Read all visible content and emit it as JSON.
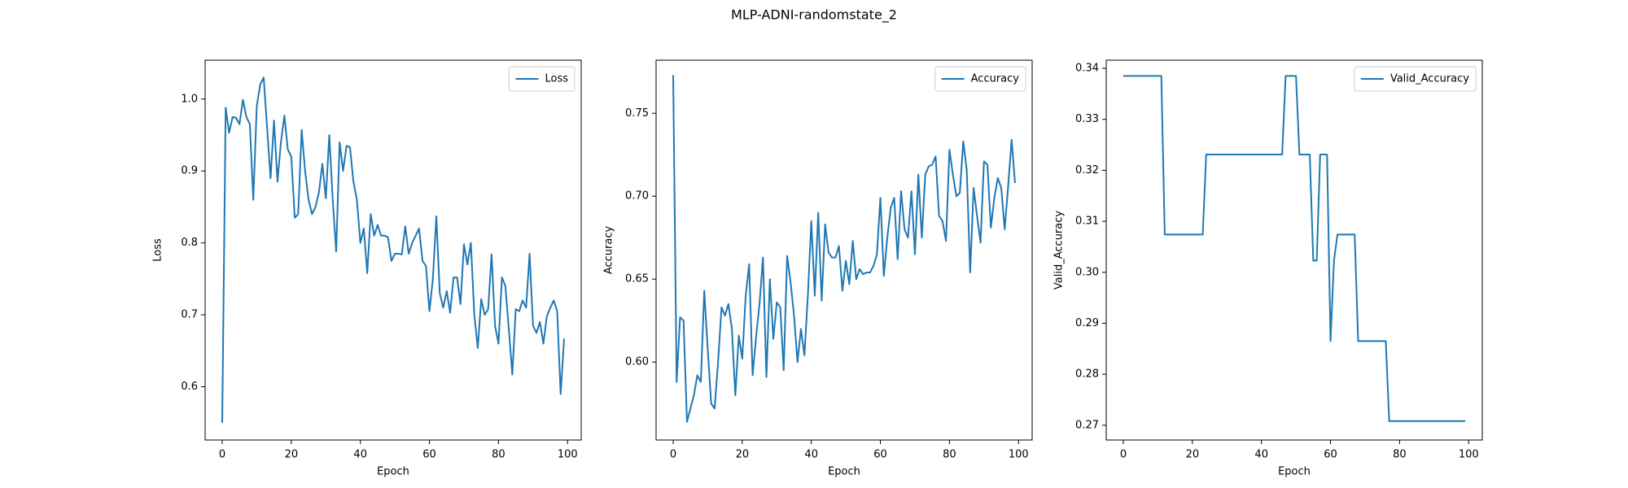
{
  "title": "MLP-ADNI-randomstate_2",
  "chart_data": [
    {
      "type": "line",
      "xlabel": "Epoch",
      "ylabel": "Loss",
      "legend": "upper right",
      "xlim": [
        -4.95,
        103.95
      ],
      "ylim": [
        0.526,
        1.054
      ],
      "xticks": [
        0,
        20,
        40,
        60,
        80,
        100
      ],
      "yticks": [
        0.6,
        0.7,
        0.8,
        0.9,
        {
          "value": 1,
          "label": "1.0"
        }
      ],
      "x": [
        0,
        1,
        2,
        3,
        4,
        5,
        6,
        7,
        8,
        9,
        10,
        11,
        12,
        13,
        14,
        15,
        16,
        17,
        18,
        19,
        20,
        21,
        22,
        23,
        24,
        25,
        26,
        27,
        28,
        29,
        30,
        31,
        32,
        33,
        34,
        35,
        36,
        37,
        38,
        39,
        40,
        41,
        42,
        43,
        44,
        45,
        46,
        47,
        48,
        49,
        50,
        51,
        52,
        53,
        54,
        55,
        56,
        57,
        58,
        59,
        60,
        61,
        62,
        63,
        64,
        65,
        66,
        67,
        68,
        69,
        70,
        71,
        72,
        73,
        74,
        75,
        76,
        77,
        78,
        79,
        80,
        81,
        82,
        83,
        84,
        85,
        86,
        87,
        88,
        89,
        90,
        91,
        92,
        93,
        94,
        95,
        96,
        97,
        98,
        99
      ],
      "series": [
        {
          "name": "Loss",
          "color": "#1f77b4",
          "values": [
            0.55,
            0.988,
            0.953,
            0.975,
            0.974,
            0.965,
            0.999,
            0.975,
            0.965,
            0.86,
            0.99,
            1.02,
            1.03,
            0.96,
            0.89,
            0.97,
            0.885,
            0.94,
            0.977,
            0.93,
            0.92,
            0.835,
            0.84,
            0.957,
            0.9,
            0.86,
            0.84,
            0.85,
            0.87,
            0.91,
            0.862,
            0.95,
            0.86,
            0.788,
            0.94,
            0.9,
            0.935,
            0.933,
            0.885,
            0.86,
            0.8,
            0.82,
            0.758,
            0.84,
            0.81,
            0.825,
            0.81,
            0.81,
            0.808,
            0.775,
            0.785,
            0.785,
            0.784,
            0.823,
            0.785,
            0.8,
            0.81,
            0.82,
            0.775,
            0.768,
            0.705,
            0.75,
            0.837,
            0.73,
            0.71,
            0.733,
            0.703,
            0.752,
            0.752,
            0.715,
            0.798,
            0.77,
            0.8,
            0.7,
            0.654,
            0.722,
            0.7,
            0.708,
            0.784,
            0.685,
            0.66,
            0.752,
            0.74,
            0.68,
            0.617,
            0.708,
            0.705,
            0.72,
            0.71,
            0.785,
            0.685,
            0.675,
            0.69,
            0.66,
            0.698,
            0.71,
            0.72,
            0.705,
            0.59,
            0.667
          ]
        }
      ]
    },
    {
      "type": "line",
      "xlabel": "Epoch",
      "ylabel": "Accuracy",
      "legend": "upper right",
      "xlim": [
        -4.95,
        103.95
      ],
      "ylim": [
        0.553,
        0.782
      ],
      "xticks": [
        0,
        20,
        40,
        60,
        80,
        100
      ],
      "yticks": [
        {
          "value": 0.6,
          "label": "0.60"
        },
        0.65,
        {
          "value": 0.7,
          "label": "0.70"
        },
        0.75
      ],
      "x": [
        0,
        1,
        2,
        3,
        4,
        5,
        6,
        7,
        8,
        9,
        10,
        11,
        12,
        13,
        14,
        15,
        16,
        17,
        18,
        19,
        20,
        21,
        22,
        23,
        24,
        25,
        26,
        27,
        28,
        29,
        30,
        31,
        32,
        33,
        34,
        35,
        36,
        37,
        38,
        39,
        40,
        41,
        42,
        43,
        44,
        45,
        46,
        47,
        48,
        49,
        50,
        51,
        52,
        53,
        54,
        55,
        56,
        57,
        58,
        59,
        60,
        61,
        62,
        63,
        64,
        65,
        66,
        67,
        68,
        69,
        70,
        71,
        72,
        73,
        74,
        75,
        76,
        77,
        78,
        79,
        80,
        81,
        82,
        83,
        84,
        85,
        86,
        87,
        88,
        89,
        90,
        91,
        92,
        93,
        94,
        95,
        96,
        97,
        98,
        99
      ],
      "series": [
        {
          "name": "Accuracy",
          "color": "#1f77b4",
          "values": [
            0.773,
            0.588,
            0.627,
            0.625,
            0.564,
            0.572,
            0.58,
            0.592,
            0.588,
            0.643,
            0.608,
            0.575,
            0.572,
            0.6,
            0.633,
            0.628,
            0.635,
            0.62,
            0.58,
            0.616,
            0.602,
            0.64,
            0.659,
            0.592,
            0.615,
            0.635,
            0.663,
            0.591,
            0.65,
            0.614,
            0.636,
            0.633,
            0.595,
            0.664,
            0.648,
            0.628,
            0.6,
            0.62,
            0.604,
            0.64,
            0.685,
            0.64,
            0.69,
            0.637,
            0.683,
            0.666,
            0.663,
            0.663,
            0.67,
            0.643,
            0.661,
            0.647,
            0.673,
            0.65,
            0.656,
            0.653,
            0.654,
            0.654,
            0.658,
            0.665,
            0.699,
            0.652,
            0.675,
            0.693,
            0.699,
            0.662,
            0.703,
            0.68,
            0.675,
            0.703,
            0.665,
            0.713,
            0.675,
            0.713,
            0.718,
            0.719,
            0.724,
            0.688,
            0.685,
            0.673,
            0.728,
            0.713,
            0.7,
            0.702,
            0.733,
            0.716,
            0.654,
            0.705,
            0.688,
            0.672,
            0.721,
            0.719,
            0.681,
            0.699,
            0.711,
            0.705,
            0.68,
            0.706,
            0.734,
            0.708
          ]
        }
      ]
    },
    {
      "type": "line",
      "xlabel": "Epoch",
      "ylabel": "Valid_Accuracy",
      "legend": "upper right",
      "xlim": [
        -4.95,
        103.95
      ],
      "ylim": [
        0.2671,
        0.3416
      ],
      "xticks": [
        0,
        20,
        40,
        60,
        80,
        100
      ],
      "yticks": [
        0.27,
        0.28,
        0.29,
        {
          "value": 0.3,
          "label": "0.30"
        },
        0.31,
        0.32,
        0.33,
        0.34
      ],
      "x": [
        0,
        1,
        2,
        3,
        4,
        5,
        6,
        7,
        8,
        9,
        10,
        11,
        12,
        13,
        14,
        15,
        16,
        17,
        18,
        19,
        20,
        21,
        22,
        23,
        24,
        25,
        26,
        27,
        28,
        29,
        30,
        31,
        32,
        33,
        34,
        35,
        36,
        37,
        38,
        39,
        40,
        41,
        42,
        43,
        44,
        45,
        46,
        47,
        48,
        49,
        50,
        51,
        52,
        53,
        54,
        55,
        56,
        57,
        58,
        59,
        60,
        61,
        62,
        63,
        64,
        65,
        66,
        67,
        68,
        69,
        70,
        71,
        72,
        73,
        74,
        75,
        76,
        77,
        78,
        79,
        80,
        81,
        82,
        83,
        84,
        85,
        86,
        87,
        88,
        89,
        90,
        91,
        92,
        93,
        94,
        95,
        96,
        97,
        98,
        99
      ],
      "series": [
        {
          "name": "Valid_Accuracy",
          "color": "#1f77b4",
          "values": [
            0.3385,
            0.3385,
            0.3385,
            0.3385,
            0.3385,
            0.3385,
            0.3385,
            0.3385,
            0.3385,
            0.3385,
            0.3385,
            0.3385,
            0.3074,
            0.3074,
            0.3074,
            0.3074,
            0.3074,
            0.3074,
            0.3074,
            0.3074,
            0.3074,
            0.3074,
            0.3074,
            0.3074,
            0.3231,
            0.3231,
            0.3231,
            0.3231,
            0.3231,
            0.3231,
            0.3231,
            0.3231,
            0.3231,
            0.3231,
            0.3231,
            0.3231,
            0.3231,
            0.3231,
            0.3231,
            0.3231,
            0.3231,
            0.3231,
            0.3231,
            0.3231,
            0.3231,
            0.3231,
            0.3231,
            0.3385,
            0.3385,
            0.3385,
            0.3385,
            0.3231,
            0.3231,
            0.3231,
            0.3231,
            0.3023,
            0.3023,
            0.3231,
            0.3231,
            0.3231,
            0.2865,
            0.3023,
            0.3074,
            0.3074,
            0.3074,
            0.3074,
            0.3074,
            0.3074,
            0.2865,
            0.2865,
            0.2865,
            0.2865,
            0.2865,
            0.2865,
            0.2865,
            0.2865,
            0.2865,
            0.2708,
            0.2708,
            0.2708,
            0.2708,
            0.2708,
            0.2708,
            0.2708,
            0.2708,
            0.2708,
            0.2708,
            0.2708,
            0.2708,
            0.2708,
            0.2708,
            0.2708,
            0.2708,
            0.2708,
            0.2708,
            0.2708,
            0.2708,
            0.2708,
            0.2708,
            0.2708
          ]
        }
      ]
    }
  ]
}
